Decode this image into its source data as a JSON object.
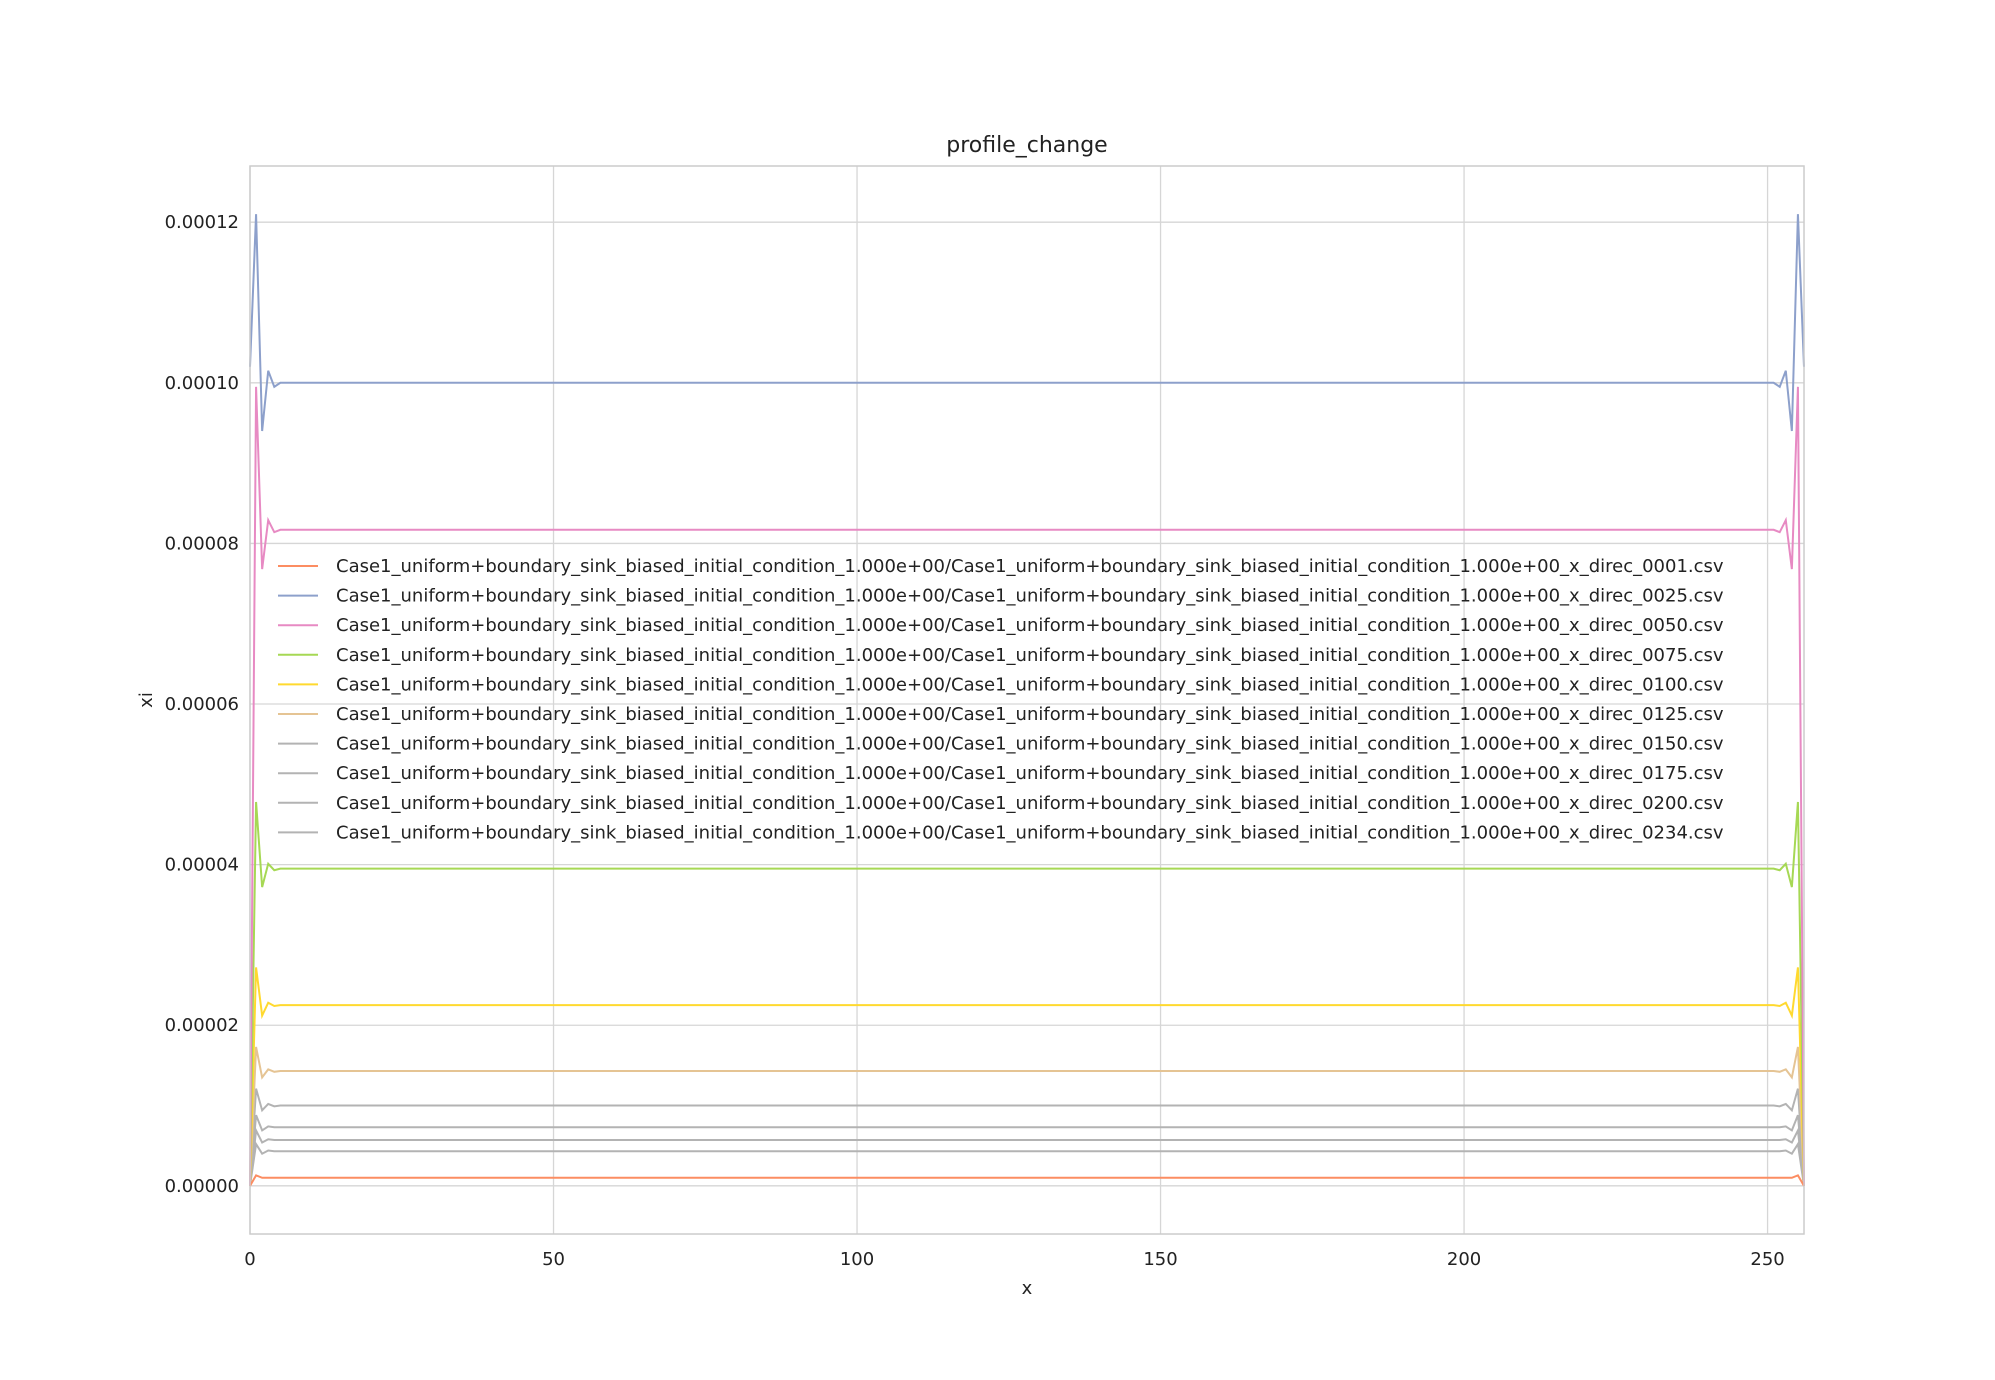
{
  "chart_data": {
    "type": "line",
    "title": "profile_change",
    "xlabel": "x",
    "ylabel": "xi",
    "xlim": [
      0,
      256
    ],
    "ylim": [
      -6e-06,
      0.000127
    ],
    "xticks": [
      0,
      50,
      100,
      150,
      200,
      250
    ],
    "xtick_labels": [
      "0",
      "50",
      "100",
      "150",
      "200",
      "250"
    ],
    "yticks": [
      0,
      2e-05,
      4e-05,
      6e-05,
      8e-05,
      0.0001,
      0.00012
    ],
    "ytick_labels": [
      "0.00000",
      "0.00002",
      "0.00004",
      "0.00006",
      "0.00008",
      "0.00010",
      "0.00012"
    ],
    "grid": true,
    "legend_position": "center-right",
    "series": [
      {
        "name": "Case1_uniform+boundary_sink_biased_initial_condition_1.000e+00/Case1_uniform+boundary_sink_biased_initial_condition_1.000e+00_x_direc_0001.csv",
        "color": "#fc8d62",
        "plateau": 1e-06,
        "profile": [
          0.0,
          1.3e-06,
          1e-06,
          1e-06,
          1e-06
        ]
      },
      {
        "name": "Case1_uniform+boundary_sink_biased_initial_condition_1.000e+00/Case1_uniform+boundary_sink_biased_initial_condition_1.000e+00_x_direc_0025.csv",
        "color": "#8da0cb",
        "plateau": 0.0001,
        "profile": [
          0.000102,
          0.000121,
          9.4e-05,
          0.0001015,
          9.95e-05
        ]
      },
      {
        "name": "Case1_uniform+boundary_sink_biased_initial_condition_1.000e+00/Case1_uniform+boundary_sink_biased_initial_condition_1.000e+00_x_direc_0050.csv",
        "color": "#e78ac3",
        "plateau": 8.17e-05,
        "profile": [
          0.0,
          9.95e-05,
          7.68e-05,
          8.29e-05,
          8.14e-05
        ]
      },
      {
        "name": "Case1_uniform+boundary_sink_biased_initial_condition_1.000e+00/Case1_uniform+boundary_sink_biased_initial_condition_1.000e+00_x_direc_0075.csv",
        "color": "#a6d854",
        "plateau": 3.95e-05,
        "profile": [
          0.0,
          4.78e-05,
          3.72e-05,
          4.01e-05,
          3.93e-05
        ]
      },
      {
        "name": "Case1_uniform+boundary_sink_biased_initial_condition_1.000e+00/Case1_uniform+boundary_sink_biased_initial_condition_1.000e+00_x_direc_0100.csv",
        "color": "#ffd92f",
        "plateau": 2.25e-05,
        "profile": [
          0.0,
          2.72e-05,
          2.12e-05,
          2.28e-05,
          2.24e-05
        ]
      },
      {
        "name": "Case1_uniform+boundary_sink_biased_initial_condition_1.000e+00/Case1_uniform+boundary_sink_biased_initial_condition_1.000e+00_x_direc_0125.csv",
        "color": "#e5c494",
        "plateau": 1.43e-05,
        "profile": [
          0.0,
          1.73e-05,
          1.35e-05,
          1.45e-05,
          1.42e-05
        ]
      },
      {
        "name": "Case1_uniform+boundary_sink_biased_initial_condition_1.000e+00/Case1_uniform+boundary_sink_biased_initial_condition_1.000e+00_x_direc_0150.csv",
        "color": "#b3b3b3",
        "plateau": 1e-05,
        "profile": [
          0.0,
          1.21e-05,
          9.4e-06,
          1.02e-05,
          9.9e-06
        ]
      },
      {
        "name": "Case1_uniform+boundary_sink_biased_initial_condition_1.000e+00/Case1_uniform+boundary_sink_biased_initial_condition_1.000e+00_x_direc_0175.csv",
        "color": "#b3b3b3",
        "plateau": 7.3e-06,
        "profile": [
          0.0,
          8.8e-06,
          6.9e-06,
          7.4e-06,
          7.3e-06
        ]
      },
      {
        "name": "Case1_uniform+boundary_sink_biased_initial_condition_1.000e+00/Case1_uniform+boundary_sink_biased_initial_condition_1.000e+00_x_direc_0200.csv",
        "color": "#b3b3b3",
        "plateau": 5.7e-06,
        "profile": [
          0.0,
          6.9e-06,
          5.4e-06,
          5.8e-06,
          5.7e-06
        ]
      },
      {
        "name": "Case1_uniform+boundary_sink_biased_initial_condition_1.000e+00/Case1_uniform+boundary_sink_biased_initial_condition_1.000e+00_x_direc_0234.csv",
        "color": "#b3b3b3",
        "plateau": 4.3e-06,
        "profile": [
          0.0,
          5.2e-06,
          4e-06,
          4.4e-06,
          4.3e-06
        ]
      }
    ]
  }
}
